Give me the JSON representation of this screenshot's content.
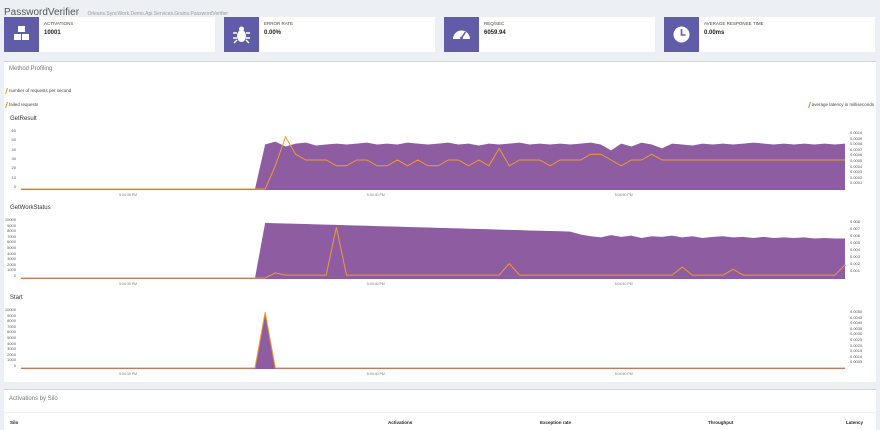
{
  "header": {
    "title": "PasswordVerifier",
    "subtitle": "Orleans.SyncWork.Demo.Api.Services.Grains.PasswordVerifier"
  },
  "stats": [
    {
      "label": "ACTIVATIONS",
      "value": "10001",
      "icon": "cubes-icon"
    },
    {
      "label": "ERROR RATE",
      "value": "0.00%",
      "icon": "bug-icon"
    },
    {
      "label": "REQ/SEC",
      "value": "6059.94",
      "icon": "dashboard-gauge-icon"
    },
    {
      "label": "AVERAGE RESPONSE TIME",
      "value": "0.00ms",
      "icon": "clock-icon"
    }
  ],
  "colors": {
    "accent": "#605ca8",
    "area": "#7a3f8f",
    "line": "#f29a2e"
  },
  "profiling": {
    "title": "Method Profiling",
    "legend": {
      "requests": "number of requests per second",
      "failed": "failed requests",
      "latency": "average latency in milliseconds"
    }
  },
  "chart_data": [
    {
      "type": "area",
      "title": "GetResult",
      "yleft_ticks": [
        "60",
        "50",
        "40",
        "30",
        "20",
        "10",
        "0"
      ],
      "yright_ticks": [
        "0.0010",
        "0.0009",
        "0.0008",
        "0.0007",
        "0.0006",
        "0.0005",
        "0.0004",
        "0.0003",
        "0.0002",
        "0.0001"
      ],
      "xticks": [
        "5:04:30 PM",
        "5:04:40 PM",
        "5:04:50 PM"
      ],
      "ylim": [
        0,
        60
      ],
      "requests_per_sec": [
        0,
        0,
        0,
        0,
        0,
        0,
        0,
        0,
        0,
        0,
        0,
        0,
        0,
        0,
        0,
        0,
        0,
        0,
        0,
        0,
        0,
        0,
        0,
        0,
        46,
        49,
        44,
        47,
        48,
        45,
        46,
        47,
        46,
        47,
        48,
        46,
        47,
        46,
        48,
        47,
        46,
        47,
        48,
        46,
        47,
        45,
        47,
        46,
        47,
        48,
        46,
        47,
        46,
        47,
        46,
        47,
        48,
        46,
        40,
        47,
        44,
        48,
        46,
        42,
        47,
        46,
        45,
        47,
        46,
        47,
        46,
        47,
        48,
        47,
        46,
        47,
        46,
        47,
        46,
        47,
        46,
        47
      ],
      "latency_ms": [
        0,
        0,
        0,
        0,
        0,
        0,
        0,
        0,
        0,
        0,
        0,
        0,
        0,
        0,
        0,
        0,
        0,
        0,
        0,
        0,
        0,
        0,
        0,
        0,
        0.0,
        0.0004,
        0.0009,
        0.0006,
        0.0005,
        0.0005,
        0.0005,
        0.0004,
        0.0004,
        0.0005,
        0.0005,
        0.0004,
        0.0004,
        0.0005,
        0.0004,
        0.0005,
        0.0004,
        0.0004,
        0.0005,
        0.0005,
        0.0004,
        0.0005,
        0.0004,
        0.0007,
        0.0004,
        0.0005,
        0.0005,
        0.0005,
        0.0004,
        0.0005,
        0.0005,
        0.0005,
        0.0006,
        0.0006,
        0.0005,
        0.0004,
        0.0005,
        0.0005,
        0.0006,
        0.0005,
        0.0005,
        0.0005,
        0.0005,
        0.0005,
        0.0005,
        0.0005,
        0.0005,
        0.0005,
        0.0005,
        0.0005,
        0.0005,
        0.0005,
        0.0005,
        0.0005,
        0.0005,
        0.0005,
        0.0005,
        0.0005
      ]
    },
    {
      "type": "area",
      "title": "GetWorkStatus",
      "yleft_ticks": [
        "10000",
        "9000",
        "8000",
        "7000",
        "6000",
        "5000",
        "4000",
        "3000",
        "2000",
        "1000",
        "0"
      ],
      "yright_ticks": [
        "0.008",
        "0.007",
        "0.006",
        "0.005",
        "0.004",
        "0.003",
        "0.002",
        "0.001"
      ],
      "xticks": [
        "5:04:30 PM",
        "5:04:40 PM",
        "5:04:50 PM"
      ],
      "ylim": [
        0,
        10000
      ],
      "requests_per_sec": [
        0,
        0,
        0,
        0,
        0,
        0,
        0,
        0,
        0,
        0,
        0,
        0,
        0,
        0,
        0,
        0,
        0,
        0,
        0,
        0,
        0,
        0,
        0,
        0,
        9500,
        9450,
        9400,
        9350,
        9300,
        9250,
        9200,
        9150,
        9100,
        9050,
        9000,
        8950,
        8900,
        8850,
        8800,
        8750,
        8700,
        8650,
        8600,
        8550,
        8500,
        8450,
        8400,
        8350,
        8300,
        8250,
        8200,
        8150,
        8100,
        8050,
        8000,
        7500,
        7200,
        7000,
        7400,
        7100,
        7300,
        6900,
        7200,
        7100,
        7300,
        7000,
        7200,
        6900,
        7100,
        7200,
        7000,
        7100,
        6900,
        7100,
        6900,
        7000,
        6900,
        7000,
        6800,
        6900,
        6800,
        6800
      ],
      "latency_ms": [
        0,
        0,
        0,
        0,
        0,
        0,
        0,
        0,
        0,
        0,
        0,
        0,
        0,
        0,
        0,
        0,
        0,
        0,
        0,
        0,
        0,
        0,
        0,
        0,
        0,
        0.0007,
        0.0004,
        0.0004,
        0.0004,
        0.0004,
        0.0004,
        0.007,
        0.0004,
        0.0004,
        0.0004,
        0.0004,
        0.0004,
        0.0004,
        0.0004,
        0.0004,
        0.0004,
        0.0004,
        0.0004,
        0.0004,
        0.0004,
        0.0004,
        0.0004,
        0.0004,
        0.002,
        0.0004,
        0.0004,
        0.0004,
        0.0004,
        0.0004,
        0.0004,
        0.0004,
        0.0004,
        0.0004,
        0.0004,
        0.0004,
        0.0004,
        0.0004,
        0.0004,
        0.0004,
        0.0004,
        0.0015,
        0.0004,
        0.0004,
        0.0004,
        0.0004,
        0.0012,
        0.0004,
        0.0004,
        0.0004,
        0.0004,
        0.0004,
        0.0004,
        0.0004,
        0.0004,
        0.0004,
        0.0004,
        0.0018,
        0.0004
      ]
    },
    {
      "type": "area",
      "title": "Start",
      "yleft_ticks": [
        "10000",
        "9000",
        "8000",
        "7000",
        "6000",
        "5000",
        "4000",
        "3000",
        "2000",
        "1000",
        "0"
      ],
      "yright_ticks": [
        "0.0050",
        "0.0045",
        "0.0040",
        "0.0035",
        "0.0030",
        "0.0025",
        "0.0020",
        "0.0015",
        "0.0010",
        "0.0005"
      ],
      "xticks": [
        "5:04:30 PM",
        "5:04:40 PM",
        "5:04:50 PM"
      ],
      "ylim": [
        0,
        10000
      ],
      "requests_per_sec": [
        0,
        0,
        0,
        0,
        0,
        0,
        0,
        0,
        0,
        0,
        0,
        0,
        0,
        0,
        0,
        0,
        0,
        0,
        0,
        0,
        0,
        0,
        0,
        0,
        9800,
        0,
        0,
        0,
        0,
        0,
        0,
        0,
        0,
        0,
        0,
        0,
        0,
        0,
        0,
        0,
        0,
        0,
        0,
        0,
        0,
        0,
        0,
        0,
        0,
        0,
        0,
        0,
        0,
        0,
        0,
        0,
        0,
        0,
        0,
        0,
        0,
        0,
        0,
        0,
        0,
        0,
        0,
        0,
        0,
        0,
        0,
        0,
        0,
        0,
        0,
        0,
        0,
        0,
        0,
        0,
        0,
        0
      ],
      "latency_ms": [
        0,
        0,
        0,
        0,
        0,
        0,
        0,
        0,
        0,
        0,
        0,
        0,
        0,
        0,
        0,
        0,
        0,
        0,
        0,
        0,
        0,
        0,
        0,
        0,
        0.0048,
        0,
        0,
        0,
        0,
        0,
        0,
        0,
        0,
        0,
        0,
        0,
        0,
        0,
        0,
        0,
        0,
        0,
        0,
        0,
        0,
        0,
        0,
        0,
        0,
        0,
        0,
        0,
        0,
        0,
        0,
        0,
        0,
        0,
        0,
        0,
        0,
        0,
        0,
        0,
        0,
        0,
        0,
        0,
        0,
        0,
        0,
        0,
        0,
        0,
        0,
        0,
        0,
        0,
        0,
        0,
        0,
        0
      ]
    }
  ],
  "silo": {
    "title": "Activations by Silo",
    "columns": [
      "Silo",
      "Activations",
      "Exception rate",
      "Throughput",
      "Latency"
    ]
  }
}
